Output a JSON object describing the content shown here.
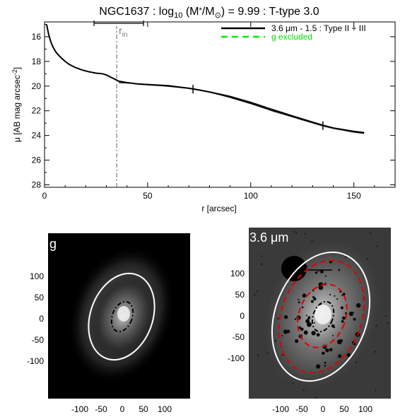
{
  "figure": {
    "title_main": "NGC1637 : log",
    "title_sub": "10",
    "title_mid": " (M",
    "title_star": "*",
    "title_slash": "/M",
    "title_sun": "⊙",
    "title_end": ") = 9.99 : T-type 3.0"
  },
  "chart_data": [
    {
      "type": "line",
      "title": "NGC1637 : log10 (M*/M⊙) = 9.99 : T-type 3.0",
      "xlabel": "r [arcsec]",
      "ylabel_main": "μ [AB mag arcsec",
      "ylabel_sup": "-2",
      "ylabel_close": "]",
      "xlim": [
        0,
        170
      ],
      "ylim": [
        28.2,
        14.8
      ],
      "xticks": [
        0,
        50,
        100,
        150
      ],
      "yticks": [
        16,
        18,
        20,
        22,
        24,
        26,
        28
      ],
      "grid": false,
      "legend_placement": "top-right",
      "legend": [
        {
          "label": "3.6 μm - 1.5 : Type II + III",
          "color": "#000000",
          "style": "solid"
        },
        {
          "label": "g excluded",
          "color": "#00ee00",
          "style": "dashed"
        }
      ],
      "r_in": {
        "label": "r",
        "sub": "in",
        "x": 35,
        "err_low": 24,
        "err_high": 48
      },
      "breaks": [
        {
          "x": 72,
          "y": 20.25
        },
        {
          "x": 135,
          "y": 23.2
        }
      ],
      "series": [
        {
          "name": "3.6 μm - 1.5 : Type II + III",
          "x": [
            1,
            2,
            3,
            4,
            5,
            6,
            8,
            10,
            12,
            15,
            18,
            21,
            25,
            28,
            30,
            33,
            36,
            40,
            45,
            50,
            55,
            60,
            65,
            70,
            75,
            80,
            85,
            90,
            95,
            100,
            105,
            110,
            115,
            120,
            125,
            130,
            135,
            140,
            145,
            150,
            155
          ],
          "y": [
            15.0,
            15.8,
            16.4,
            16.8,
            17.1,
            17.35,
            17.7,
            18.0,
            18.25,
            18.5,
            18.68,
            18.82,
            18.95,
            19.0,
            19.1,
            19.35,
            19.6,
            19.72,
            19.82,
            19.88,
            19.93,
            20.0,
            20.08,
            20.18,
            20.32,
            20.48,
            20.68,
            20.9,
            21.15,
            21.4,
            21.68,
            21.95,
            22.2,
            22.45,
            22.7,
            22.95,
            23.2,
            23.4,
            23.55,
            23.7,
            23.8
          ]
        },
        {
          "name": "model",
          "x": [
            36,
            50,
            60,
            72,
            80,
            90,
            100,
            110,
            120,
            130,
            135,
            140,
            150,
            155
          ],
          "y": [
            19.72,
            19.85,
            19.95,
            20.2,
            20.45,
            20.82,
            21.3,
            21.85,
            22.38,
            22.9,
            23.15,
            23.38,
            23.65,
            23.75
          ]
        }
      ]
    },
    {
      "type": "image",
      "panel_label": "g",
      "xticks": [
        -100,
        -50,
        0,
        50,
        100
      ],
      "yticks": [
        100,
        50,
        0,
        -50,
        -100
      ],
      "ellipses": [
        {
          "style": "white-solid",
          "semi_major": 90,
          "semi_minor": 62,
          "angle": 20
        },
        {
          "style": "black-dashdot",
          "semi_major": 30,
          "semi_minor": 20,
          "angle": 20
        }
      ]
    },
    {
      "type": "image",
      "panel_label": "3.6 μm",
      "xticks": [
        -100,
        -50,
        0,
        50,
        100
      ],
      "yticks": [
        100,
        50,
        0,
        -50,
        -100
      ],
      "ellipses": [
        {
          "style": "white-solid",
          "semi_major": 140,
          "semi_minor": 95,
          "angle": 20
        },
        {
          "style": "red-dashed",
          "semi_major": 120,
          "semi_minor": 82,
          "angle": 20
        },
        {
          "style": "red-dashed",
          "semi_major": 65,
          "semi_minor": 45,
          "angle": 20
        },
        {
          "style": "black-dashdot",
          "semi_major": 30,
          "semi_minor": 20,
          "angle": 20
        }
      ]
    }
  ]
}
